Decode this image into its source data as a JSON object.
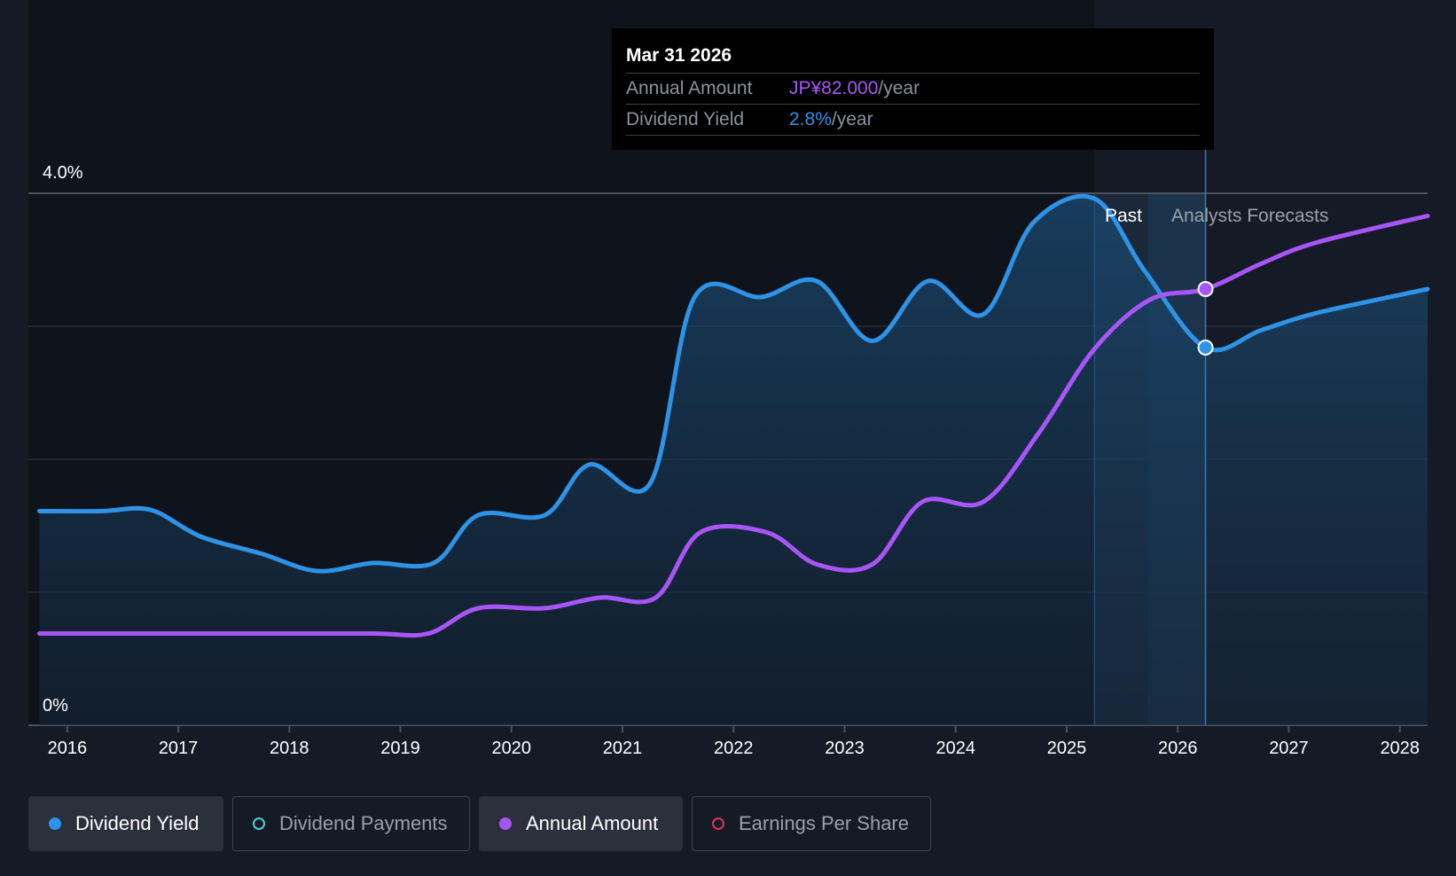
{
  "chart_data": {
    "type": "line",
    "y_axis": {
      "min": 0,
      "max": 4.0,
      "tick_labels": [
        "0%",
        "4.0%"
      ],
      "gridlines": [
        0,
        1,
        2,
        3,
        4
      ]
    },
    "x_axis": {
      "min": 2015.65,
      "max": 2028.25,
      "ticks": [
        "2016",
        "2017",
        "2018",
        "2019",
        "2020",
        "2021",
        "2022",
        "2023",
        "2024",
        "2025",
        "2026",
        "2027",
        "2028"
      ]
    },
    "regions": {
      "past_label": "Past",
      "forecast_label": "Analysts Forecasts",
      "past_start": 2025.25,
      "shade_start": 2025.73,
      "forecast_start": 2026.25
    },
    "series": [
      {
        "name": "Dividend Yield",
        "color": "#2e93e6",
        "points": [
          [
            2015.75,
            1.61
          ],
          [
            2016.3,
            1.61
          ],
          [
            2016.75,
            1.62
          ],
          [
            2017.2,
            1.42
          ],
          [
            2017.75,
            1.29
          ],
          [
            2018.25,
            1.16
          ],
          [
            2018.75,
            1.22
          ],
          [
            2019.3,
            1.22
          ],
          [
            2019.7,
            1.58
          ],
          [
            2020.3,
            1.58
          ],
          [
            2020.7,
            1.96
          ],
          [
            2021.25,
            1.82
          ],
          [
            2021.65,
            3.22
          ],
          [
            2022.25,
            3.22
          ],
          [
            2022.75,
            3.34
          ],
          [
            2023.25,
            2.89
          ],
          [
            2023.75,
            3.34
          ],
          [
            2024.25,
            3.09
          ],
          [
            2024.7,
            3.78
          ],
          [
            2025.25,
            3.96
          ],
          [
            2025.7,
            3.42
          ],
          [
            2026.25,
            2.84
          ],
          [
            2026.75,
            2.97
          ],
          [
            2027.25,
            3.1
          ],
          [
            2028.25,
            3.28
          ]
        ]
      },
      {
        "name": "Annual Amount",
        "color": "#a855f7",
        "points": [
          [
            2015.75,
            0.69
          ],
          [
            2016.75,
            0.69
          ],
          [
            2017.75,
            0.69
          ],
          [
            2018.75,
            0.69
          ],
          [
            2019.25,
            0.69
          ],
          [
            2019.7,
            0.88
          ],
          [
            2020.3,
            0.88
          ],
          [
            2020.8,
            0.96
          ],
          [
            2021.3,
            0.96
          ],
          [
            2021.7,
            1.45
          ],
          [
            2022.3,
            1.45
          ],
          [
            2022.75,
            1.21
          ],
          [
            2023.25,
            1.21
          ],
          [
            2023.7,
            1.68
          ],
          [
            2024.25,
            1.68
          ],
          [
            2024.75,
            2.2
          ],
          [
            2025.25,
            2.83
          ],
          [
            2025.75,
            3.2
          ],
          [
            2026.25,
            3.28
          ],
          [
            2026.75,
            3.47
          ],
          [
            2027.25,
            3.63
          ],
          [
            2028.25,
            3.83
          ]
        ]
      }
    ],
    "highlight": {
      "x": 2026.25,
      "yield_value": 2.84,
      "amount_value": 3.28
    }
  },
  "tooltip": {
    "date": "Mar 31 2026",
    "rows": [
      {
        "label": "Annual Amount",
        "value": "JP¥82.000",
        "unit": "/year"
      },
      {
        "label": "Dividend Yield",
        "value": "2.8%",
        "unit": "/year"
      }
    ]
  },
  "legend": [
    {
      "label": "Dividend Yield",
      "color": "#2e93e6",
      "active": true
    },
    {
      "label": "Dividend Payments",
      "color": "#4fd1c5",
      "active": false
    },
    {
      "label": "Annual Amount",
      "color": "#a855f7",
      "active": true
    },
    {
      "label": "Earnings Per Share",
      "color": "#d6336c",
      "active": false
    }
  ]
}
